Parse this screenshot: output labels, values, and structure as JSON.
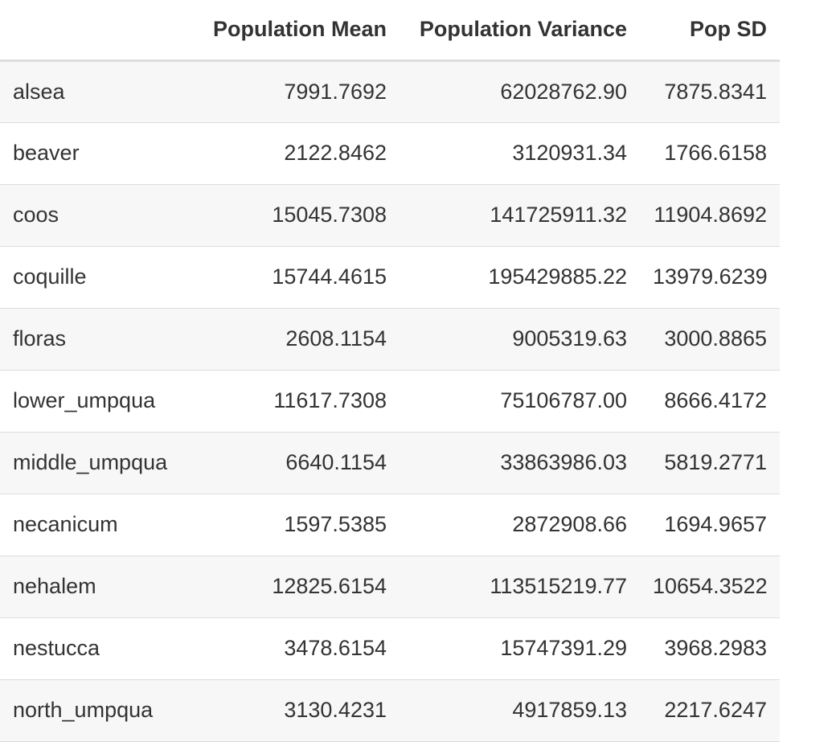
{
  "table": {
    "headers": [
      "",
      "Population Mean",
      "Population Variance",
      "Pop SD"
    ],
    "rows": [
      [
        "alsea",
        "7991.7692",
        "62028762.90",
        "7875.8341"
      ],
      [
        "beaver",
        "2122.8462",
        "3120931.34",
        "1766.6158"
      ],
      [
        "coos",
        "15045.7308",
        "141725911.32",
        "11904.8692"
      ],
      [
        "coquille",
        "15744.4615",
        "195429885.22",
        "13979.6239"
      ],
      [
        "floras",
        "2608.1154",
        "9005319.63",
        "3000.8865"
      ],
      [
        "lower_umpqua",
        "11617.7308",
        "75106787.00",
        "8666.4172"
      ],
      [
        "middle_umpqua",
        "6640.1154",
        "33863986.03",
        "5819.2771"
      ],
      [
        "necanicum",
        "1597.5385",
        "2872908.66",
        "1694.9657"
      ],
      [
        "nehalem",
        "12825.6154",
        "113515219.77",
        "10654.3522"
      ],
      [
        "nestucca",
        "3478.6154",
        "15747391.29",
        "3968.2983"
      ],
      [
        "north_umpqua",
        "3130.4231",
        "4917859.13",
        "2217.6247"
      ]
    ]
  }
}
